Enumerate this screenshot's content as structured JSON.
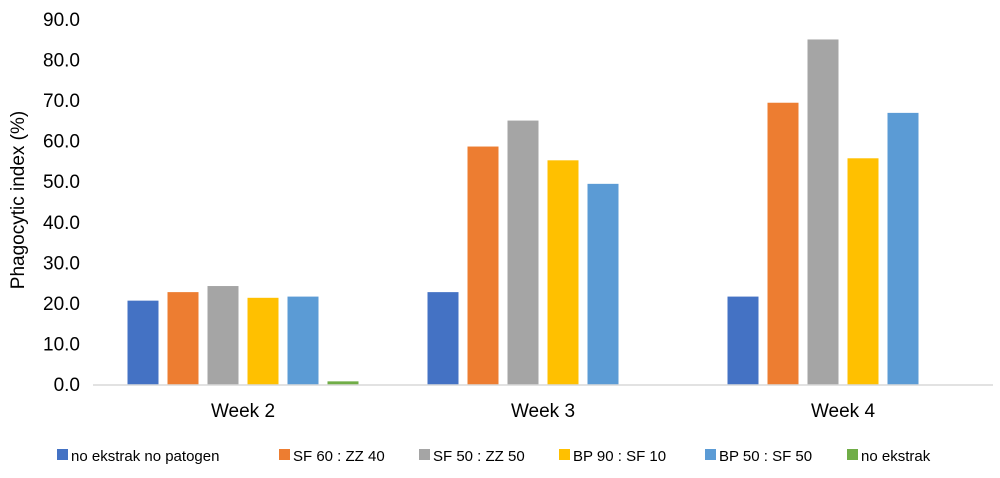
{
  "chart_data": {
    "type": "bar",
    "title": "",
    "xlabel": "",
    "ylabel": "Phagocytic index (%)",
    "ylim": [
      0,
      90
    ],
    "yticks": [
      "0.0",
      "10.0",
      "20.0",
      "30.0",
      "40.0",
      "50.0",
      "60.0",
      "70.0",
      "80.0",
      "90.0"
    ],
    "grid": false,
    "legend_position": "bottom",
    "categories": [
      "Week 2",
      "Week 3",
      "Week 4"
    ],
    "series": [
      {
        "name": "no ekstrak no patogen",
        "color": "#4472C4",
        "values": [
          20.8,
          22.9,
          21.8
        ]
      },
      {
        "name": "SF 60 : ZZ 40",
        "color": "#ED7D31",
        "values": [
          22.9,
          58.8,
          69.6
        ]
      },
      {
        "name": "SF 50 : ZZ 50",
        "color": "#A5A5A5",
        "values": [
          24.4,
          65.2,
          85.2
        ]
      },
      {
        "name": "BP 90 : SF 10",
        "color": "#FFC000",
        "values": [
          21.5,
          55.4,
          55.9
        ]
      },
      {
        "name": "BP 50 : SF 50",
        "color": "#5B9BD5",
        "values": [
          21.8,
          49.6,
          67.1
        ]
      },
      {
        "name": "no ekstrak",
        "color": "#70AD47",
        "values": [
          0.9,
          0,
          0
        ]
      }
    ]
  }
}
